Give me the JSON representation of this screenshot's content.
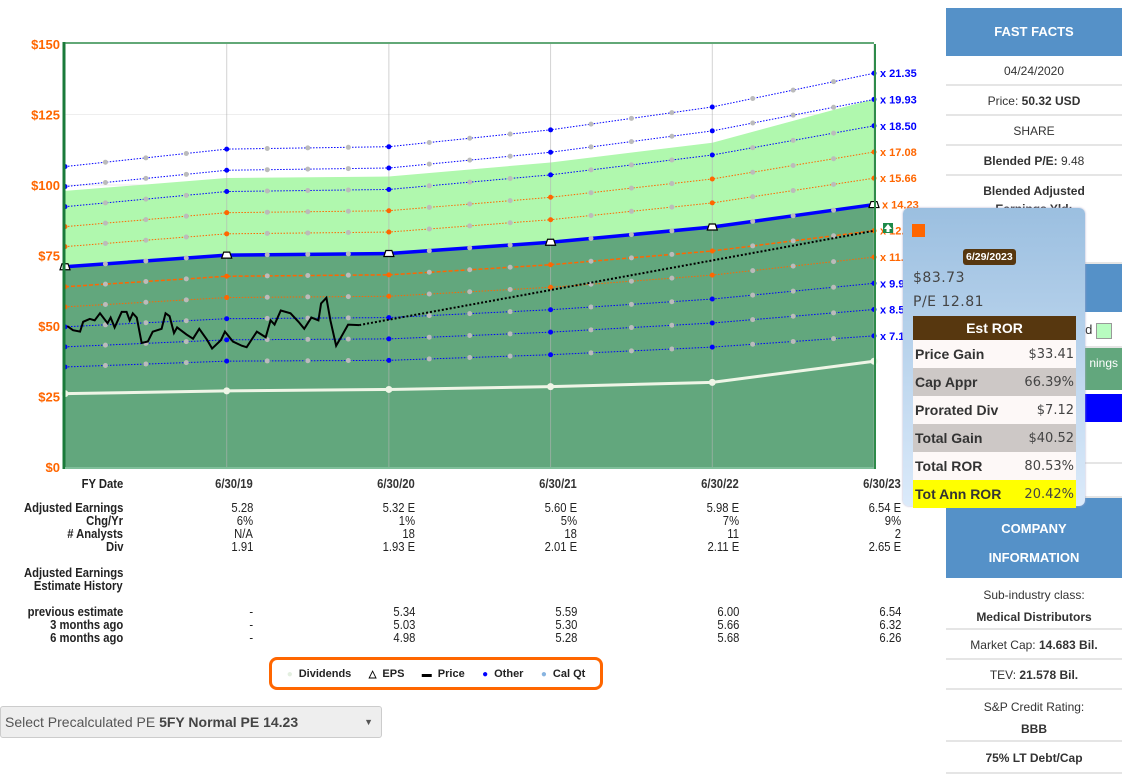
{
  "chart_data": {
    "type": "line",
    "y_ticks": [
      "$0",
      "$25",
      "$50",
      "$75",
      "$100",
      "$125",
      "$150"
    ],
    "ylim": [
      0,
      150
    ],
    "xlim": [
      "2018-06-30",
      "2023-06-30"
    ],
    "fy_dates": [
      "2018-06-30",
      "2019-06-30",
      "2020-06-30",
      "2021-06-30",
      "2022-06-30",
      "2023-06-30"
    ],
    "eps": [
      4.99,
      5.28,
      5.32,
      5.6,
      5.98,
      6.54
    ],
    "normal_pe": 14.23,
    "pe_lines": [
      {
        "label": "x 21.35",
        "mult": 21.35,
        "color": "#0000ff"
      },
      {
        "label": "x 19.93",
        "mult": 19.93,
        "color": "#0000ff"
      },
      {
        "label": "x 18.50",
        "mult": 18.5,
        "color": "#0000ff"
      },
      {
        "label": "x 17.08",
        "mult": 17.08,
        "color": "#ff6600"
      },
      {
        "label": "x 15.66",
        "mult": 15.66,
        "color": "#ff6600"
      },
      {
        "label": "x 14.23",
        "mult": 14.23,
        "color": "#ff6600"
      },
      {
        "label": "x 12.81",
        "mult": 12.81,
        "color": "#ff6600"
      },
      {
        "label": "x 11.38",
        "mult": 11.38,
        "color": "#ff6600"
      },
      {
        "label": "x 9.96",
        "mult": 9.96,
        "color": "#0000ff"
      },
      {
        "label": "x 8.54",
        "mult": 8.54,
        "color": "#0000ff"
      },
      {
        "label": "x 7.11",
        "mult": 7.11,
        "color": "#0000ff"
      }
    ],
    "upper_band": [
      97.9,
      102.5,
      103,
      108,
      115,
      130.5
    ],
    "dividends": [
      26,
      27,
      27.5,
      28.5,
      30,
      37.5
    ],
    "price": [
      [
        "2018-07-05",
        50
      ],
      [
        "2018-07-18",
        48.5
      ],
      [
        "2018-08-03",
        48
      ],
      [
        "2018-08-10",
        51.5
      ],
      [
        "2018-08-25",
        52.5
      ],
      [
        "2018-09-05",
        52
      ],
      [
        "2018-09-17",
        54.5
      ],
      [
        "2018-10-04",
        51
      ],
      [
        "2018-10-11",
        53
      ],
      [
        "2018-10-20",
        49.5
      ],
      [
        "2018-11-05",
        55
      ],
      [
        "2018-11-16",
        55
      ],
      [
        "2018-11-23",
        52
      ],
      [
        "2018-11-30",
        54.5
      ],
      [
        "2018-12-09",
        53
      ],
      [
        "2018-12-20",
        44
      ],
      [
        "2019-01-03",
        44.5
      ],
      [
        "2019-01-14",
        48
      ],
      [
        "2019-02-03",
        49
      ],
      [
        "2019-02-12",
        54.5
      ],
      [
        "2019-02-21",
        53.5
      ],
      [
        "2019-03-03",
        47.5
      ],
      [
        "2019-03-10",
        49.5
      ],
      [
        "2019-03-31",
        47
      ],
      [
        "2019-04-15",
        45.5
      ],
      [
        "2019-04-29",
        49
      ],
      [
        "2019-05-17",
        45
      ],
      [
        "2019-05-28",
        42
      ],
      [
        "2019-06-17",
        45
      ],
      [
        "2019-06-26",
        48
      ],
      [
        "2019-07-14",
        44.5
      ],
      [
        "2019-08-03",
        43
      ],
      [
        "2019-08-14",
        42.5
      ],
      [
        "2019-09-06",
        48
      ],
      [
        "2019-09-26",
        46
      ],
      [
        "2019-10-07",
        52
      ],
      [
        "2019-10-16",
        50.5
      ],
      [
        "2019-10-30",
        55.5
      ],
      [
        "2019-11-21",
        54.5
      ],
      [
        "2019-12-09",
        51.5
      ],
      [
        "2019-12-22",
        49
      ],
      [
        "2020-01-07",
        53
      ],
      [
        "2020-01-23",
        52
      ],
      [
        "2020-01-29",
        58
      ],
      [
        "2020-02-10",
        60
      ],
      [
        "2020-02-19",
        52
      ],
      [
        "2020-03-03",
        43
      ],
      [
        "2020-03-14",
        46
      ],
      [
        "2020-03-30",
        50.5
      ],
      [
        "2020-04-24",
        50.32
      ]
    ],
    "price_projection": [
      [
        "2020-04-24",
        50.32
      ],
      [
        "2023-06-29",
        83.73
      ]
    ],
    "colors": {
      "dark_fill": "#62a77d",
      "light_fill": "#b0f8ae",
      "eps": "#0000ff",
      "axis": "#1a7a3a",
      "tick": "#ff6600",
      "dividend": "#eef5e6",
      "calqt": "#bbbbbb"
    }
  },
  "table": {
    "header": {
      "label": "FY Date",
      "values": [
        "6/30/19",
        "6/30/20",
        "6/30/21",
        "6/30/22",
        "6/30/23"
      ]
    },
    "rows": [
      {
        "label": "Adjusted Earnings",
        "values": [
          "5.28",
          "5.32 E",
          "5.60 E",
          "5.98 E",
          "6.54 E"
        ]
      },
      {
        "label": "Chg/Yr",
        "values": [
          "6%",
          "1%",
          "5%",
          "7%",
          "9%"
        ]
      },
      {
        "label": "# Analysts",
        "values": [
          "N/A",
          "18",
          "18",
          "11",
          "2"
        ]
      },
      {
        "label": "Div",
        "values": [
          "1.91",
          "1.93 E",
          "2.01 E",
          "2.11 E",
          "2.65 E"
        ]
      }
    ],
    "history_title1": "Adjusted Earnings",
    "history_title2": "Estimate History",
    "history": [
      {
        "label": "previous estimate",
        "values": [
          "-",
          "5.34",
          "5.59",
          "6.00",
          "6.54"
        ]
      },
      {
        "label": "3 months ago",
        "values": [
          "-",
          "5.03",
          "5.30",
          "5.66",
          "6.32"
        ]
      },
      {
        "label": "6 months ago",
        "values": [
          "-",
          "4.98",
          "5.28",
          "5.68",
          "6.26"
        ]
      }
    ]
  },
  "legend": [
    {
      "label": "Dividends",
      "symbol": "●",
      "color": "#e3efe0"
    },
    {
      "label": "EPS",
      "symbol": "△",
      "color": "#000"
    },
    {
      "label": "Price",
      "symbol": "▬",
      "color": "#000"
    },
    {
      "label": "Other",
      "symbol": "●",
      "color": "#0000ff"
    },
    {
      "label": "Cal Qt",
      "symbol": "●",
      "color": "#88b4e0"
    }
  ],
  "select": {
    "prefix": "Select Precalculated PE",
    "value": "5FY Normal PE 14.23"
  },
  "sidebar": {
    "fast_facts": "FAST FACTS",
    "date": "04/24/2020",
    "price_label": "Price:",
    "price_value": "50.32 USD",
    "share": "SHARE",
    "blended_pe_label": "Blended P/E:",
    "blended_pe_value": "9.48",
    "blended_yld_label": "Blended Adjusted Earnings Yld:",
    "frag1": "d",
    "frag2": "nings",
    "company_info1": "COMPANY",
    "company_info2": "INFORMATION",
    "subind_label": "Sub-industry class:",
    "subind_value": "Medical Distributors",
    "mcap_label": "Market Cap:",
    "mcap_value": "14.683 Bil.",
    "tev_label": "TEV:",
    "tev_value": "21.578 Bil.",
    "sp_label": "S&P Credit Rating:",
    "sp_value": "BBB",
    "debt": "75% LT Debt/Cap"
  },
  "tooltip": {
    "date": "6/29/2023",
    "price": "$83.73",
    "pe": "P/E 12.81",
    "title": "Est ROR",
    "rows": [
      {
        "k": "Price Gain",
        "v": "$33.41"
      },
      {
        "k": "Cap Appr",
        "v": "66.39%"
      },
      {
        "k": "Prorated Div",
        "v": "$7.12"
      },
      {
        "k": "Total Gain",
        "v": "$40.52"
      },
      {
        "k": "Total ROR",
        "v": "80.53%"
      },
      {
        "k": "Tot Ann ROR",
        "v": "20.42%"
      }
    ]
  }
}
